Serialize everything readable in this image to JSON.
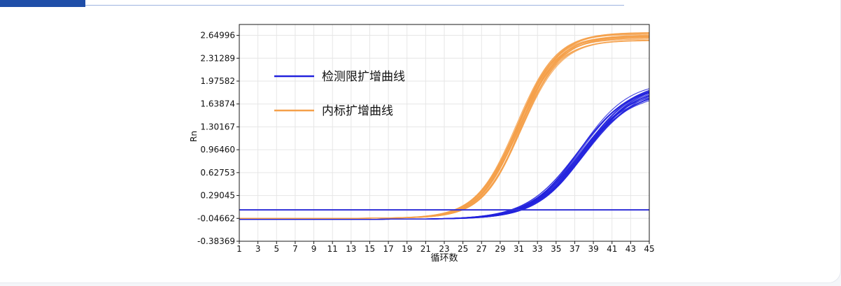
{
  "chart_data": {
    "type": "line",
    "title": "",
    "xlabel": "循环数",
    "ylabel": "Rn",
    "xlim": [
      1,
      45
    ],
    "ylim": [
      -0.38369,
      2.81
    ],
    "x_ticks": [
      1,
      3,
      5,
      7,
      9,
      11,
      13,
      15,
      17,
      19,
      21,
      23,
      25,
      27,
      29,
      31,
      33,
      35,
      37,
      39,
      41,
      43,
      45
    ],
    "y_ticks": [
      "2.64996",
      "2.31289",
      "1.97582",
      "1.63874",
      "1.30167",
      "0.96460",
      "0.62753",
      "0.29045",
      "-0.04662",
      "-0.38369"
    ],
    "grid": true,
    "legend_position": "top-left",
    "threshold": 0.078,
    "series": [
      {
        "name": "检测限扩增曲线",
        "color": "#2222dd",
        "count": 24,
        "baseline": -0.06,
        "plateau": [
          1.8,
          2.0
        ],
        "midpoint": [
          37.3,
          38.2
        ],
        "slope": [
          2.6,
          2.9
        ]
      },
      {
        "name": "内标扩增曲线",
        "color": "#f5a04a",
        "count": 24,
        "baseline": -0.045,
        "plateau": [
          2.57,
          2.7
        ],
        "midpoint": [
          30.7,
          31.3
        ],
        "slope": [
          2.05,
          2.25
        ]
      }
    ]
  }
}
